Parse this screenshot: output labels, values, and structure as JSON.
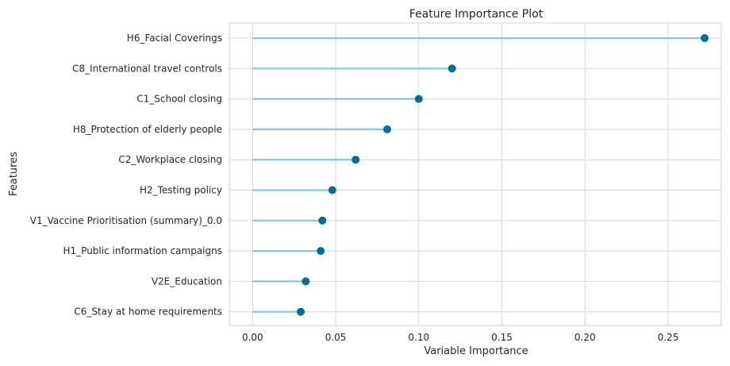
{
  "chart_data": {
    "type": "lollipop",
    "title": "Feature Importance Plot",
    "xlabel": "Variable Importance",
    "ylabel": "Features",
    "xlim": [
      -0.014,
      0.282
    ],
    "xticks": [
      0.0,
      0.05,
      0.1,
      0.15,
      0.2,
      0.25
    ],
    "xtick_labels": [
      "0.00",
      "0.05",
      "0.10",
      "0.15",
      "0.20",
      "0.25"
    ],
    "grid": true,
    "categories": [
      "H6_Facial Coverings",
      "C8_International travel controls",
      "C1_School closing",
      "H8_Protection of elderly people",
      "C2_Workplace closing",
      "H2_Testing policy",
      "V1_Vaccine Prioritisation (summary)_0.0",
      "H1_Public information campaigns",
      "V2E_Education",
      "C6_Stay at home requirements"
    ],
    "values": [
      0.272,
      0.12,
      0.1,
      0.081,
      0.062,
      0.048,
      0.042,
      0.041,
      0.032,
      0.029
    ],
    "colors": {
      "stem": "#7ec8e3",
      "marker": "#006e96",
      "grid": "#d9d9d9",
      "frame": "#cccccc",
      "text": "#262626"
    }
  }
}
